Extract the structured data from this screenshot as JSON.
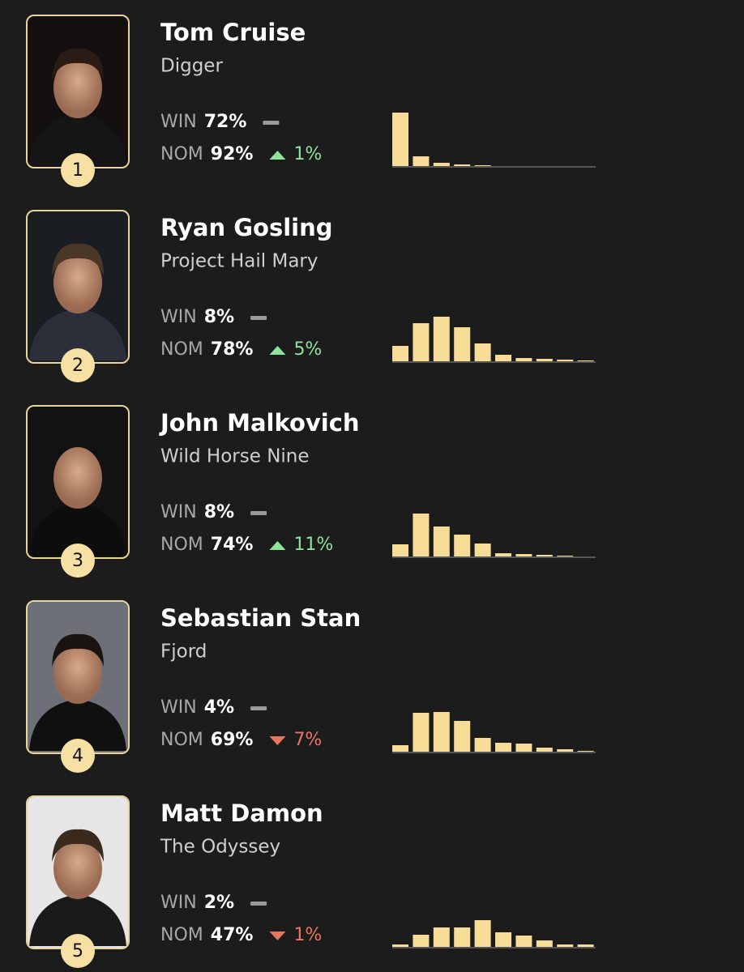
{
  "entries": [
    {
      "rank": "1",
      "name": "Tom Cruise",
      "film": "Digger",
      "win_label": "WIN",
      "win": "72%",
      "nom_label": "NOM",
      "nom": "92%",
      "nom_change": "1%",
      "nom_direction": "up",
      "distribution": [
        66,
        12,
        4,
        2,
        1,
        0,
        0,
        0,
        0,
        0
      ]
    },
    {
      "rank": "2",
      "name": "Ryan Gosling",
      "film": "Project Hail Mary",
      "win_label": "WIN",
      "win": "8%",
      "nom_label": "NOM",
      "nom": "78%",
      "nom_change": "5%",
      "nom_direction": "up",
      "distribution": [
        19,
        47,
        55,
        42,
        22,
        8,
        4,
        3,
        2,
        1
      ]
    },
    {
      "rank": "3",
      "name": "John Malkovich",
      "film": "Wild Horse Nine",
      "win_label": "WIN",
      "win": "8%",
      "nom_label": "NOM",
      "nom": "74%",
      "nom_change": "11%",
      "nom_direction": "up",
      "distribution": [
        15,
        53,
        37,
        27,
        16,
        4,
        3,
        2,
        1,
        0
      ]
    },
    {
      "rank": "4",
      "name": "Sebastian Stan",
      "film": "Fjord",
      "win_label": "WIN",
      "win": "4%",
      "nom_label": "NOM",
      "nom": "69%",
      "nom_change": "7%",
      "nom_direction": "down",
      "distribution": [
        8,
        48,
        49,
        38,
        17,
        11,
        10,
        5,
        3,
        1
      ]
    },
    {
      "rank": "5",
      "name": "Matt Damon",
      "film": "The Odyssey",
      "win_label": "WIN",
      "win": "2%",
      "nom_label": "NOM",
      "nom": "47%",
      "nom_change": "1%",
      "nom_direction": "down",
      "distribution": [
        3,
        15,
        24,
        24,
        33,
        18,
        14,
        8,
        3,
        3
      ]
    }
  ]
}
